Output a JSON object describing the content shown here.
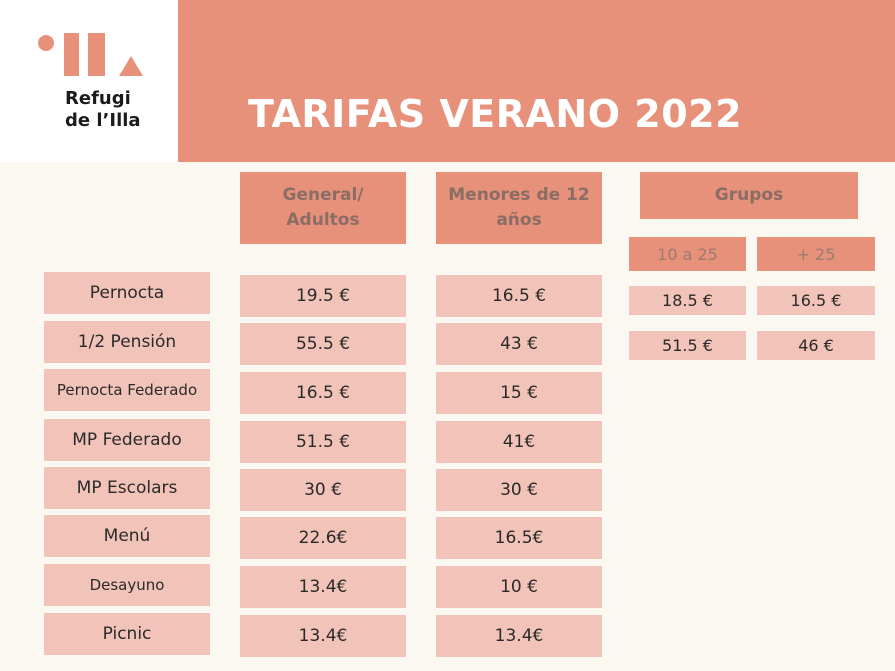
{
  "logo": {
    "line1": "Refugi",
    "line2": "de l’Illa"
  },
  "title": "TARIFAS VERANO 2022",
  "columns": {
    "general": "General/\nAdultos",
    "menores": "Menores de 12\naños",
    "grupos": "Grupos",
    "grupos_sub": [
      "10 a 25",
      "+ 25"
    ]
  },
  "rows": [
    {
      "label": "Pernocta",
      "general": "19.5 €",
      "menores": "16.5 €"
    },
    {
      "label": "1/2 Pensión",
      "general": "55.5 €",
      "menores": "43 €"
    },
    {
      "label": "Pernocta Federado",
      "general": "16.5 €",
      "menores": "15 €"
    },
    {
      "label": "MP Federado",
      "general": "51.5 €",
      "menores": "41€"
    },
    {
      "label": "MP Escolars",
      "general": "30 €",
      "menores": "30 €"
    },
    {
      "label": "Menú",
      "general": "22.6€",
      "menores": "16.5€"
    },
    {
      "label": "Desayuno",
      "general": "13.4€",
      "menores": "10 €"
    },
    {
      "label": "Picnic",
      "general": "13.4€",
      "menores": "13.4€"
    }
  ],
  "groups": [
    {
      "a": "18.5 €",
      "b": "16.5 €"
    },
    {
      "a": "51.5 €",
      "b": "46 €"
    }
  ]
}
